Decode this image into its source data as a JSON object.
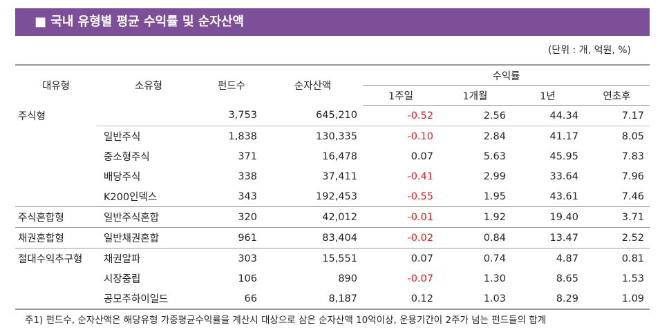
{
  "header": {
    "title": "■ 국내 유형별 평균 수익률 및 순자산액",
    "unit": "(단위 : 개, 억원, %)"
  },
  "table": {
    "columns": [
      "대유형",
      "소유형",
      "펀드수",
      "순자산액"
    ],
    "group_header": "수익률",
    "sub_columns": [
      "1주일",
      "1개월",
      "1년",
      "연초후"
    ],
    "rows": [
      [
        "주식형",
        null,
        "3,753",
        "645,210",
        "-0.52",
        "2.56",
        "44.34",
        "7.17"
      ],
      [
        null,
        "일반주식",
        "1,838",
        "130,335",
        "-0.10",
        "2.84",
        "41.17",
        "8.05"
      ],
      [
        null,
        "중소형주식",
        "371",
        "16,478",
        "0.07",
        "5.63",
        "45.95",
        "7.83"
      ],
      [
        null,
        "배당주식",
        "338",
        "37,411",
        "-0.41",
        "2.99",
        "33.64",
        "7.96"
      ],
      [
        null,
        "K200인덱스",
        "343",
        "192,453",
        "-0.55",
        "1.95",
        "43.61",
        "7.46"
      ],
      [
        "주식혼합형",
        "일반주식혼합",
        "320",
        "42,012",
        "-0.01",
        "1.92",
        "19.40",
        "3.71"
      ],
      [
        "채권혼합형",
        "일반채권혼합",
        "961",
        "83,404",
        "-0.02",
        "0.84",
        "13.47",
        "2.52"
      ],
      [
        "절대수익추구형",
        "채권알파",
        "303",
        "15,551",
        "0.07",
        "0.74",
        "4.87",
        "0.81"
      ],
      [
        null,
        "시장중립",
        "106",
        "890",
        "-0.07",
        "1.30",
        "8.65",
        "1.53"
      ],
      [
        null,
        "공모주하이일드",
        "66",
        "8,187",
        "0.12",
        "1.03",
        "8.29",
        "1.09"
      ]
    ]
  },
  "footnote": "주1) 펀드수, 순자산액은 해당유형 가중평균수익률을 계산시 대상으로 삼은 순자산액 10억이상, 운용기간이 2주가 넘는 펀드들의 합계"
}
